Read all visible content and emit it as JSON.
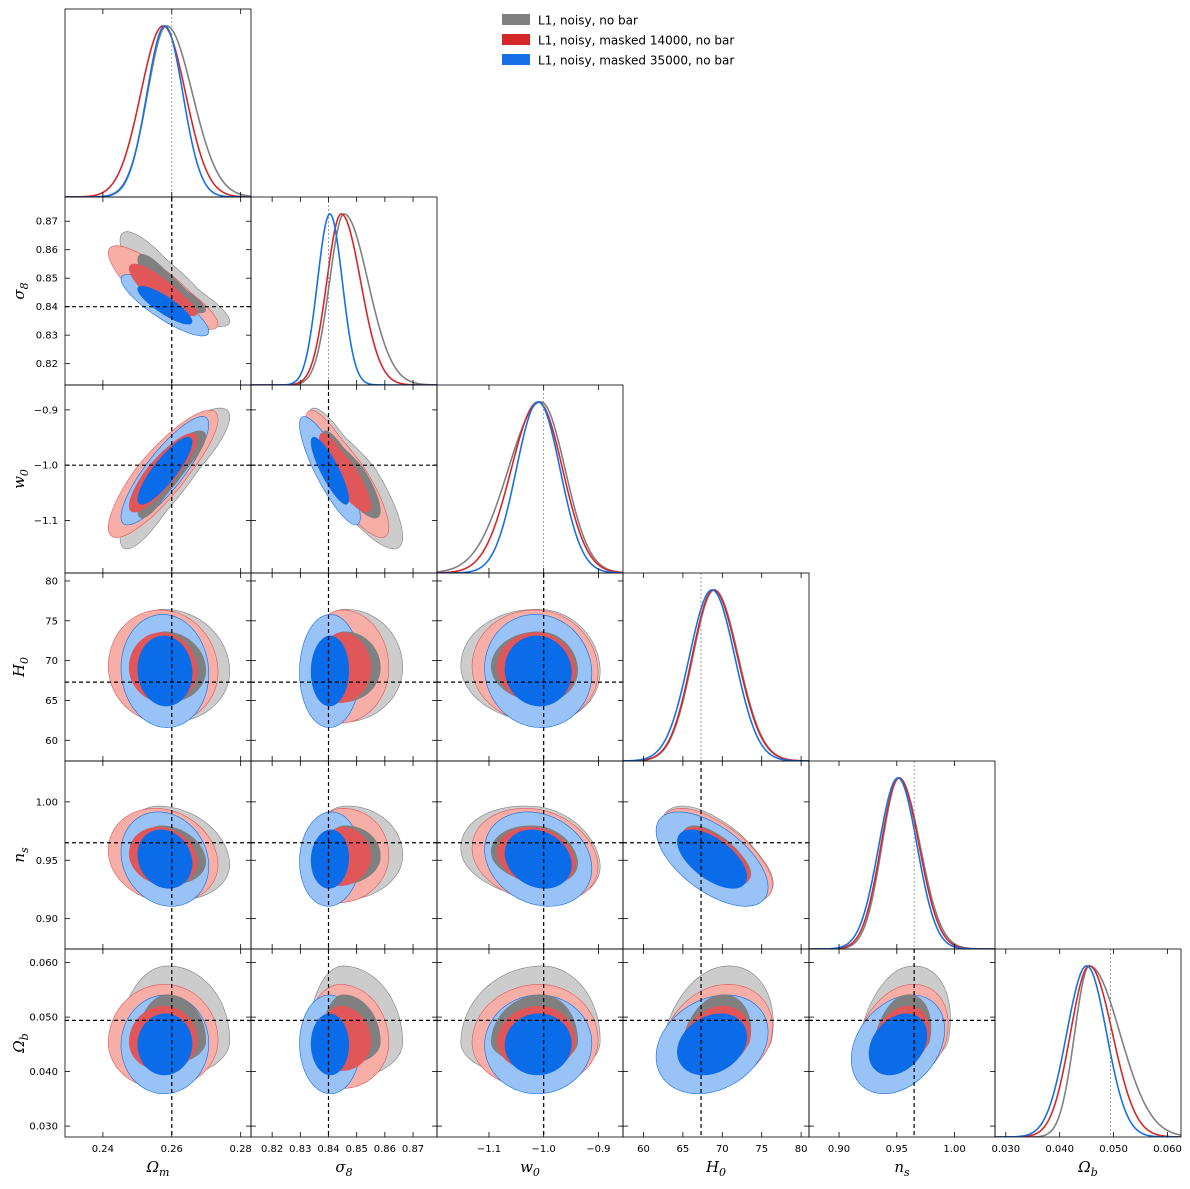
{
  "chart_data": {
    "type": "triangle-corner",
    "title": "",
    "parameters": [
      {
        "key": "Om",
        "label": "Ω",
        "sub": "m",
        "range": [
          0.229,
          0.283
        ],
        "ticks": [
          0.24,
          0.26,
          0.28
        ],
        "tick_labels": [
          "0.24",
          "0.26",
          "0.28"
        ],
        "truth": 0.26,
        "truth_label": "0.26"
      },
      {
        "key": "s8",
        "label": "σ",
        "sub": "8",
        "range": [
          0.8125,
          0.8785
        ],
        "ticks": [
          0.82,
          0.83,
          0.84,
          0.85,
          0.86,
          0.87
        ],
        "tick_labels": [
          "0.82",
          "0.83",
          "0.84",
          "0.85",
          "0.86",
          "0.87"
        ],
        "truth": 0.84,
        "truth_label": "0.84"
      },
      {
        "key": "w0",
        "label": "w",
        "sub": "0",
        "range": [
          -1.195,
          -0.855
        ],
        "ticks": [
          -1.1,
          -1.0,
          -0.9
        ],
        "tick_labels": [
          "−1.1",
          "−1.0",
          "−0.9"
        ],
        "truth": -1.0,
        "truth_label": "−1.0"
      },
      {
        "key": "H0",
        "label": "H",
        "sub": "0",
        "range": [
          57.4,
          81.0
        ],
        "ticks": [
          60,
          65,
          70,
          75,
          80
        ],
        "tick_labels": [
          "60",
          "65",
          "70",
          "75",
          "80"
        ],
        "truth": 67.3,
        "truth_label": "67.3"
      },
      {
        "key": "ns",
        "label": "n",
        "sub": "s",
        "range": [
          0.874,
          1.035
        ],
        "ticks": [
          0.9,
          0.95,
          1.0
        ],
        "tick_labels": [
          "0.90",
          "0.95",
          "1.00"
        ],
        "truth": 0.965,
        "truth_label": "0.965"
      },
      {
        "key": "Ob",
        "label": "Ω",
        "sub": "b",
        "range": [
          0.028,
          0.0625
        ],
        "ticks": [
          0.03,
          0.04,
          0.05,
          0.06
        ],
        "tick_labels": [
          "0.030",
          "0.040",
          "0.050",
          "0.060"
        ],
        "truth": 0.0494,
        "truth_label": "0.0494"
      }
    ],
    "series": [
      {
        "name": "L1, noisy, no bar",
        "color": "#808080",
        "light": "#cccccc",
        "dark": "#808080",
        "mean": [
          0.2585,
          0.8455,
          -1.005,
          69.0,
          0.952,
          0.0455
        ],
        "sd": [
          0.0065,
          0.0068,
          0.052,
          2.9,
          0.0165,
          0.0042
        ],
        "skew": [
          0.15,
          0.25,
          -0.15,
          0.05,
          0.1,
          0.35
        ]
      },
      {
        "name": "L1, noisy, masked 14000, no bar",
        "color": "#d62728",
        "light": "#f7aea6",
        "dark": "#e15759",
        "mean": [
          0.2575,
          0.8445,
          -1.01,
          68.9,
          0.952,
          0.0455
        ],
        "sd": [
          0.0065,
          0.006,
          0.047,
          2.9,
          0.0165,
          0.0039
        ],
        "skew": [
          0.0,
          0.15,
          -0.05,
          0.05,
          0.05,
          0.1
        ]
      },
      {
        "name": "L1, noisy, masked 35000, no bar",
        "color": "#1670e8",
        "light": "#99c2f7",
        "dark": "#0a6ce8",
        "mean": [
          0.258,
          0.8405,
          -1.01,
          68.7,
          0.951,
          0.045
        ],
        "sd": [
          0.0052,
          0.0044,
          0.04,
          2.9,
          0.0165,
          0.0037
        ],
        "skew": [
          0.0,
          0.0,
          0.0,
          0.0,
          0.0,
          0.0
        ]
      }
    ],
    "correlations": [
      [
        1,
        -0.85,
        0.85,
        -0.05,
        -0.15,
        0.02
      ],
      [
        -0.85,
        1,
        -0.85,
        0.02,
        0.05,
        -0.02
      ],
      [
        0.85,
        -0.85,
        1,
        -0.05,
        -0.2,
        0.02
      ],
      [
        -0.05,
        0.02,
        -0.05,
        1,
        -0.6,
        0.25
      ],
      [
        -0.15,
        0.05,
        -0.2,
        -0.6,
        1,
        0.3
      ],
      [
        0.02,
        -0.02,
        0.02,
        0.25,
        0.3,
        1
      ]
    ],
    "legend_position": "top-right"
  }
}
